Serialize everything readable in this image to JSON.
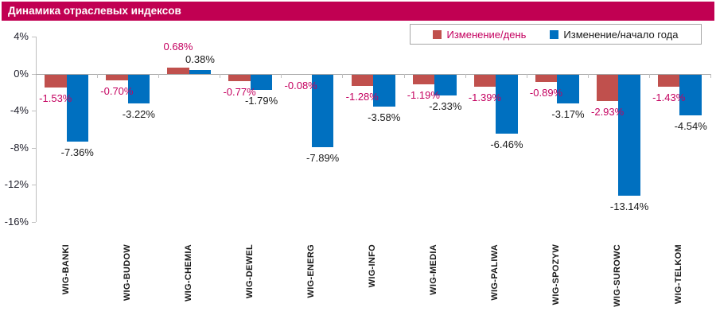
{
  "title": "Динамика отраслевых индексов",
  "legend": {
    "items": [
      {
        "label": "Изменение/день",
        "swatch_color": "#C0504D",
        "text_color": "#C4005F"
      },
      {
        "label": "Изменение/начало года",
        "swatch_color": "#0070C0",
        "text_color": "#1A1A1A"
      }
    ]
  },
  "colors": {
    "title_bg": "#C10052",
    "title_text": "#FFFFFF",
    "background": "#FFFFFF",
    "axis_line": "#BFBFBF",
    "zero_line": "#A6A6A6",
    "y_label": "#23232F",
    "category_label": "#1A1A1A",
    "legend_border": "#A6A6A6"
  },
  "chart_data": {
    "type": "bar",
    "title": "Динамика отраслевых индексов",
    "categories": [
      "WIG-BANKI",
      "WIG-BUDOW",
      "WIG-CHEMIA",
      "WIG-DEWEL",
      "WIG-ENERG",
      "WIG-INFO",
      "WIG-MEDIA",
      "WIG-PALIWA",
      "WIG-SPOZYW",
      "WIG-SUROWC",
      "WIG-TELKOM"
    ],
    "series": [
      {
        "name": "Изменение/день",
        "color": "#C0504D",
        "label_color": "#C4005F",
        "values": [
          -1.53,
          -0.7,
          0.68,
          -0.77,
          -0.08,
          -1.28,
          -1.19,
          -1.39,
          -0.89,
          -2.93,
          -1.43
        ],
        "labels": [
          "-1.53%",
          "-0.70%",
          "0.68%",
          "-0.77%",
          "-0.08%",
          "-1.28%",
          "-1.19%",
          "-1.39%",
          "-0.89%",
          "-2.93%",
          "-1.43%"
        ]
      },
      {
        "name": "Изменение/начало года",
        "color": "#0070C0",
        "label_color": "#1A1A1A",
        "values": [
          -7.36,
          -3.22,
          0.38,
          -1.79,
          -7.89,
          -3.58,
          -2.33,
          -6.46,
          -3.17,
          -13.14,
          -4.54
        ],
        "labels": [
          "-7.36%",
          "-3.22%",
          "0.38%",
          "-1.79%",
          "-7.89%",
          "-3.58%",
          "-2.33%",
          "-6.46%",
          "-3.17%",
          "-13.14%",
          "-4.54%"
        ]
      }
    ],
    "y_axis": {
      "unit": "%",
      "min": -16,
      "max": 4,
      "ticks": [
        4,
        0,
        -4,
        -8,
        -12,
        -16
      ],
      "tick_labels": [
        "4%",
        "0%",
        "-4%",
        "-8%",
        "-12%",
        "-16%"
      ]
    },
    "grid": "none, zero baseline only",
    "legend_position": "top-right",
    "bar_labels": "outside-end"
  }
}
